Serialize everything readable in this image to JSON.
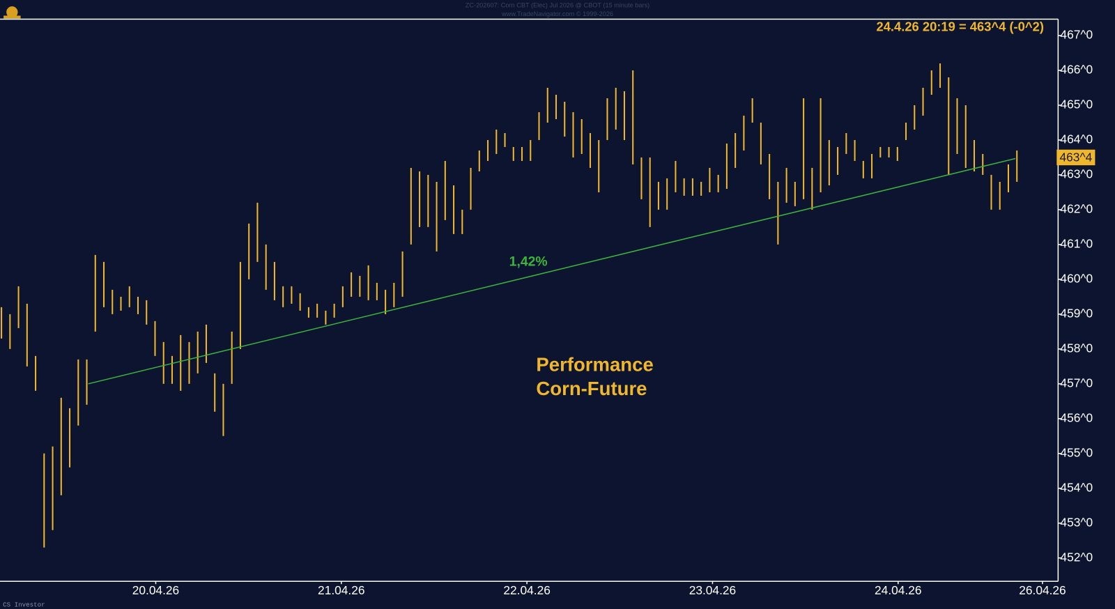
{
  "chart_data": {
    "type": "ohlc",
    "title": "ZC-202607: Corn CBT (Elec) Jul 2026 @ CBOT (15 minute bars)",
    "subtitle": "www.TradeNavigator.com © 1999-2026",
    "footer": "CS Investor",
    "annotation": "24.4.26 20:19 = 463^4 (-0^2)",
    "headline": [
      "Performance",
      "Corn-Future"
    ],
    "color": "#f0b72c",
    "high": [
      459.2,
      459.0,
      459.8,
      459.3,
      457.8,
      455.0,
      455.2,
      456.6,
      456.3,
      457.7,
      457.7,
      460.7,
      460.5,
      459.7,
      459.5,
      459.8,
      459.5,
      459.4,
      458.8,
      458.2,
      457.8,
      458.4,
      458.2,
      458.5,
      458.7,
      457.3,
      457.0,
      458.5,
      460.5,
      461.6,
      462.2,
      461.0,
      460.5,
      459.8,
      459.8,
      459.6,
      459.2,
      459.3,
      459.1,
      459.3,
      459.8,
      460.2,
      460.1,
      460.4,
      459.9,
      459.7,
      459.9,
      460.8,
      463.2,
      463.1,
      463.0,
      462.8,
      463.4,
      462.7,
      462.0,
      463.2,
      463.7,
      464.0,
      464.3,
      464.2,
      463.8,
      463.8,
      464.0,
      464.8,
      465.5,
      465.3,
      465.1,
      464.8,
      464.6,
      464.2,
      464.0,
      465.2,
      465.5,
      465.4,
      466.0,
      463.5,
      463.5,
      462.8,
      462.9,
      463.4,
      462.9,
      462.9,
      462.8,
      463.2,
      463.0,
      463.9,
      464.2,
      464.7,
      465.2,
      464.5,
      463.6,
      462.8,
      463.2,
      462.8,
      465.2,
      463.2,
      465.2,
      464.0,
      463.8,
      464.2,
      464.0,
      463.4,
      463.6,
      463.8,
      463.8,
      463.8,
      464.5,
      465.0,
      465.5,
      466.0,
      466.2,
      465.8,
      465.2,
      465.0,
      464.0,
      463.6,
      463.0,
      462.8,
      463.3,
      463.7
    ],
    "low": [
      458.3,
      458.0,
      458.6,
      457.5,
      456.8,
      452.3,
      452.8,
      453.8,
      454.6,
      455.8,
      456.4,
      458.5,
      459.2,
      459.0,
      459.1,
      459.2,
      459.0,
      458.7,
      457.8,
      457.0,
      457.0,
      456.8,
      457.0,
      457.3,
      457.6,
      456.2,
      455.5,
      457.0,
      458.0,
      460.0,
      460.5,
      459.7,
      459.4,
      459.2,
      459.3,
      459.1,
      458.9,
      458.9,
      458.7,
      458.9,
      459.2,
      459.5,
      459.5,
      459.4,
      459.4,
      459.0,
      459.2,
      459.5,
      461.0,
      461.5,
      461.5,
      460.8,
      461.7,
      461.3,
      461.3,
      462.0,
      463.1,
      463.4,
      463.6,
      463.8,
      463.4,
      463.4,
      463.4,
      464.0,
      464.5,
      464.6,
      464.1,
      463.5,
      463.6,
      463.2,
      462.5,
      464.0,
      464.3,
      464.0,
      463.3,
      462.3,
      461.5,
      462.0,
      462.0,
      462.5,
      462.4,
      462.4,
      462.4,
      462.5,
      462.5,
      462.6,
      463.2,
      463.7,
      464.5,
      463.3,
      462.3,
      461.0,
      462.2,
      462.1,
      462.3,
      462.0,
      462.5,
      462.7,
      463.0,
      463.6,
      463.4,
      462.9,
      462.9,
      463.5,
      463.5,
      463.4,
      464.0,
      464.3,
      464.7,
      465.3,
      465.5,
      463.0,
      463.6,
      463.2,
      463.1,
      463.0,
      462.0,
      462.0,
      462.5,
      462.8
    ],
    "xlim": [
      -0.17,
      123.83
    ],
    "xticks": [
      {
        "value": 18.08,
        "label": "20.04.26"
      },
      {
        "value": 39.83,
        "label": "21.04.26"
      },
      {
        "value": 61.58,
        "label": "22.04.26"
      },
      {
        "value": 83.33,
        "label": "23.04.26"
      },
      {
        "value": 105.08,
        "label": "24.04.26"
      },
      {
        "value": 122.0,
        "label": "26.04.26"
      }
    ],
    "ylim": [
      451.33,
      467.47
    ],
    "yticks": [
      {
        "value": 452,
        "label": "452^0"
      },
      {
        "value": 453,
        "label": "453^0"
      },
      {
        "value": 454,
        "label": "454^0"
      },
      {
        "value": 455,
        "label": "455^0"
      },
      {
        "value": 456,
        "label": "456^0"
      },
      {
        "value": 457,
        "label": "457^0"
      },
      {
        "value": 458,
        "label": "458^0"
      },
      {
        "value": 459,
        "label": "459^0"
      },
      {
        "value": 460,
        "label": "460^0"
      },
      {
        "value": 461,
        "label": "461^0"
      },
      {
        "value": 462,
        "label": "462^0"
      },
      {
        "value": 463,
        "label": "463^0"
      },
      {
        "value": 464,
        "label": "464^0"
      },
      {
        "value": 465,
        "label": "465^0"
      },
      {
        "value": 466,
        "label": "466^0"
      },
      {
        "value": 467,
        "label": "467^0"
      }
    ],
    "last_price": {
      "value": 463.5,
      "label": "463^4"
    },
    "trendline": {
      "x": [
        10.17,
        118.83
      ],
      "y": [
        457.0,
        463.47
      ],
      "label": "1,42%",
      "color": "#3cb43c"
    }
  }
}
